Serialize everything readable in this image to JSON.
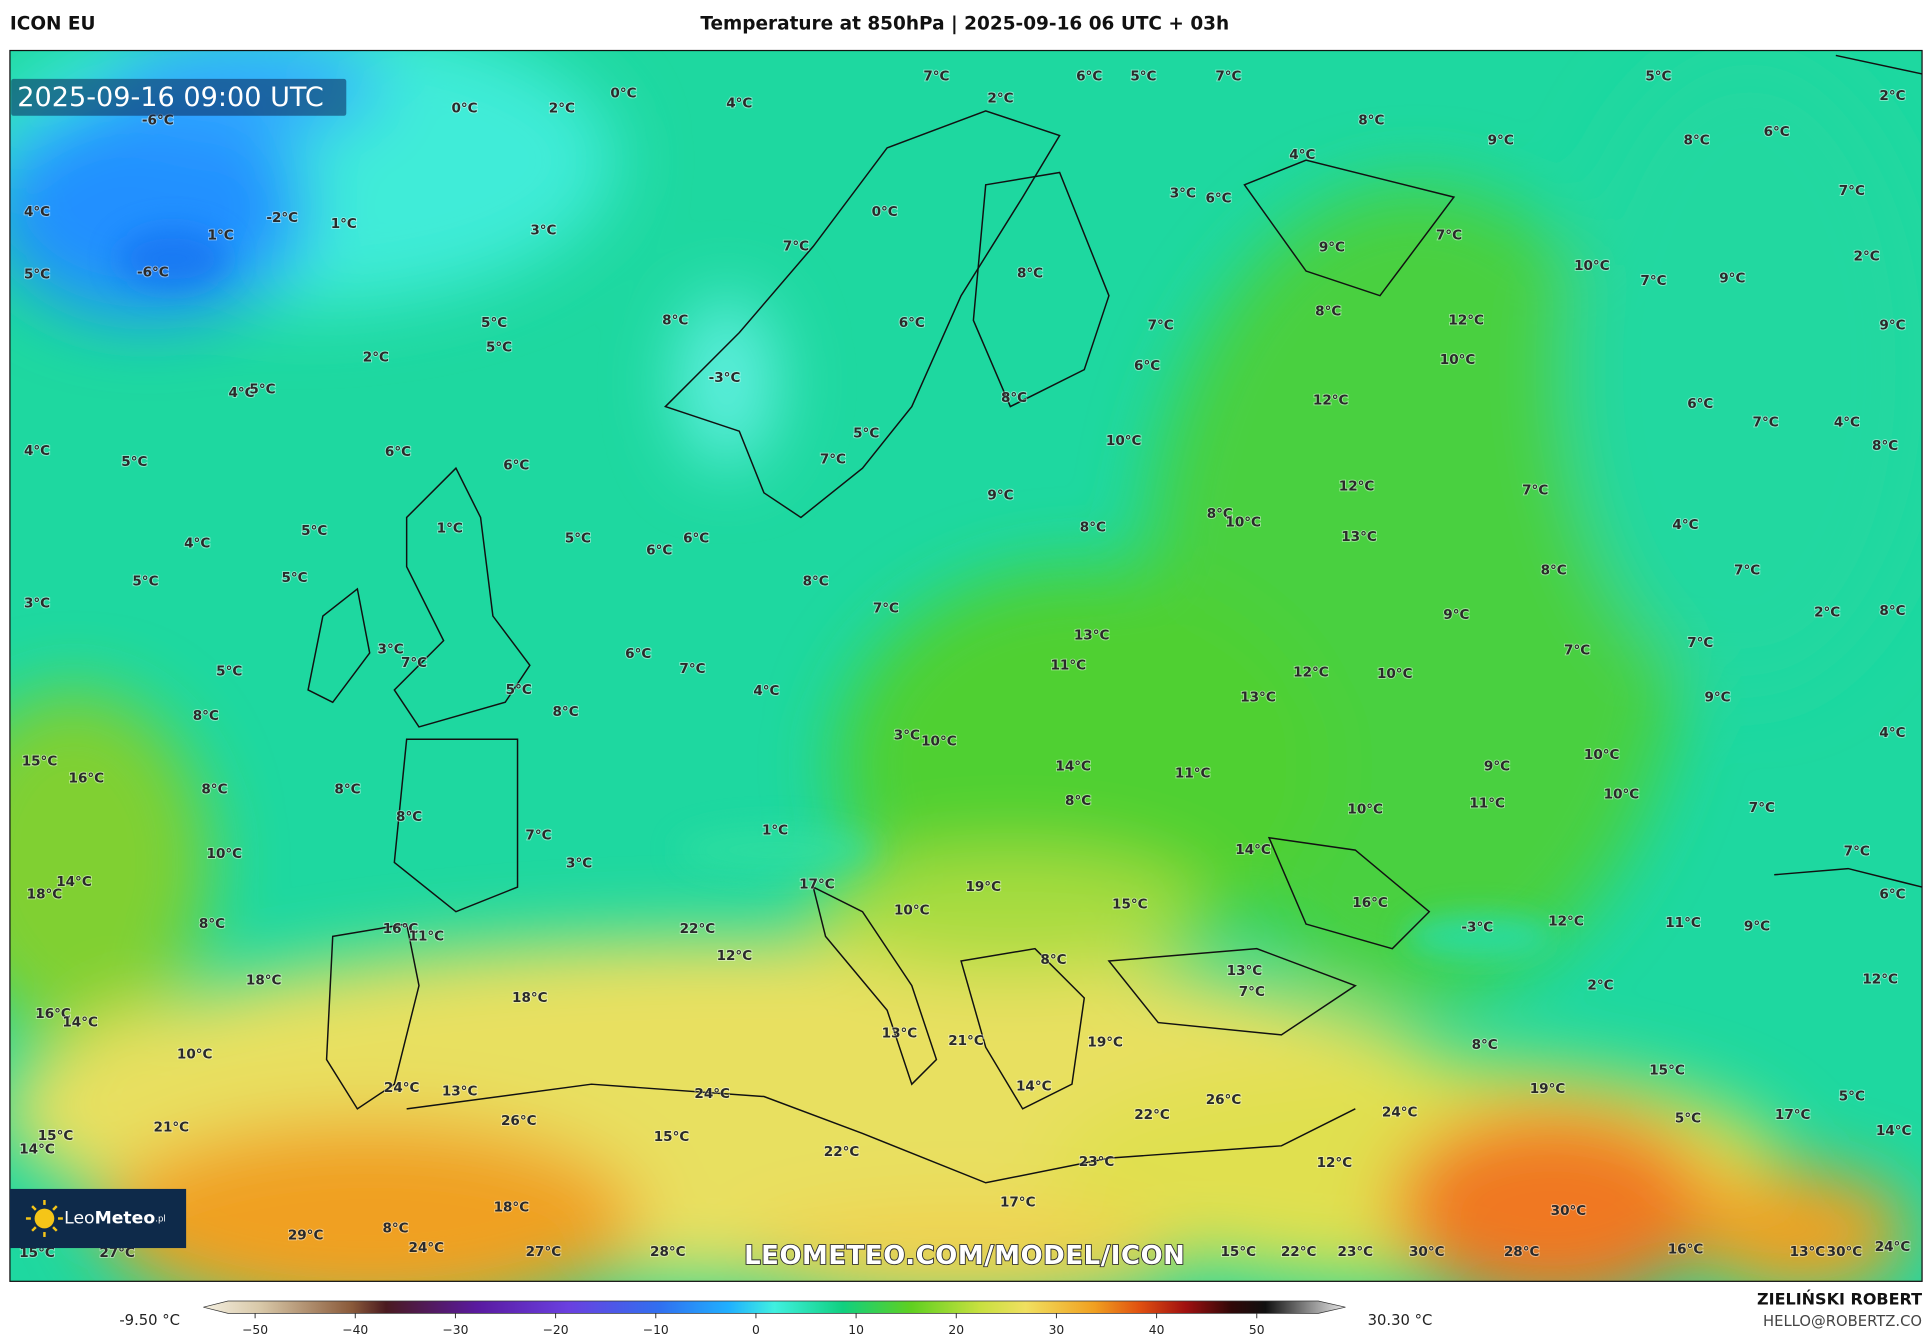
{
  "header": {
    "model": "ICON EU",
    "title": "Temperature at 850hPa | 2025-09-16 06 UTC + 03h"
  },
  "map": {
    "timestamp": "2025-09-16 09:00 UTC",
    "watermark": "LEOMETEO.COM/MODEL/ICON",
    "logo": {
      "name_light": "Leo",
      "name_bold": "Meteo",
      "suffix": ".pl"
    },
    "labels": [
      "0°C",
      "2°C",
      "0°C",
      "4°C",
      "7°C",
      "2°C",
      "6°C",
      "5°C",
      "7°C",
      "5°C",
      "2°C",
      "-6°C",
      "8°C",
      "9°C",
      "8°C",
      "6°C",
      "4°C",
      "4°C",
      "-2°C",
      "1°C",
      "1°C",
      "3°C",
      "0°C",
      "3°C",
      "6°C",
      "7°C",
      "5°C",
      "-6°C",
      "7°C",
      "7°C",
      "9°C",
      "10°C",
      "7°C",
      "9°C",
      "2°C",
      "8°C",
      "5°C",
      "8°C",
      "6°C",
      "7°C",
      "8°C",
      "12°C",
      "9°C",
      "5°C",
      "2°C",
      "10°C",
      "6°C",
      "4°C",
      "5°C",
      "-3°C",
      "8°C",
      "12°C",
      "6°C",
      "7°C",
      "4°C",
      "5°C",
      "10°C",
      "4°C",
      "5°C",
      "6°C",
      "6°C",
      "7°C",
      "8°C",
      "9°C",
      "12°C",
      "7°C",
      "1°C",
      "4°C",
      "5°C",
      "5°C",
      "6°C",
      "6°C",
      "8°C",
      "10°C",
      "8°C",
      "13°C",
      "4°C",
      "5°C",
      "5°C",
      "8°C",
      "8°C",
      "7°C",
      "3°C",
      "7°C",
      "9°C",
      "2°C",
      "8°C",
      "13°C",
      "3°C",
      "7°C",
      "6°C",
      "7°C",
      "11°C",
      "12°C",
      "10°C",
      "7°C",
      "7°C",
      "5°C",
      "5°C",
      "4°C",
      "13°C",
      "9°C",
      "8°C",
      "8°C",
      "4°C",
      "3°C",
      "10°C",
      "15°C",
      "16°C",
      "8°C",
      "8°C",
      "14°C",
      "11°C",
      "9°C",
      "10°C",
      "10°C",
      "8°C",
      "8°C",
      "10°C",
      "11°C",
      "7°C",
      "10°C",
      "7°C",
      "1°C",
      "14°C",
      "7°C",
      "3°C",
      "14°C",
      "18°C",
      "17°C",
      "19°C",
      "6°C",
      "10°C",
      "15°C",
      "16°C",
      "8°C",
      "16°C",
      "11°C",
      "22°C",
      "-3°C",
      "12°C",
      "11°C",
      "9°C",
      "12°C",
      "8°C",
      "18°C",
      "13°C",
      "7°C",
      "2°C",
      "12°C",
      "16°C",
      "14°C",
      "18°C",
      "13°C",
      "21°C",
      "19°C",
      "8°C",
      "10°C",
      "15°C",
      "24°C",
      "13°C",
      "24°C",
      "14°C",
      "26°C",
      "19°C",
      "5°C",
      "26°C",
      "24°C",
      "5°C",
      "17°C",
      "21°C",
      "15°C",
      "22°C",
      "14°C",
      "15°C",
      "14°C",
      "22°C",
      "23°C",
      "12°C",
      "17°C",
      "18°C",
      "30°C",
      "29°C",
      "8°C",
      "24°C",
      "27°C",
      "28°C",
      "15°C",
      "27°C",
      "15°C",
      "22°C",
      "23°C",
      "30°C",
      "28°C",
      "16°C",
      "13°C",
      "30°C",
      "24°C"
    ]
  },
  "colorbar": {
    "min_label": "-9.50 °C",
    "max_label": "30.30 °C",
    "ticks": [
      "−50",
      "−40",
      "−30",
      "−20",
      "−10",
      "0",
      "10",
      "20",
      "30",
      "40",
      "50"
    ]
  },
  "credit": {
    "author": "ZIELIŃSKI ROBERT",
    "email": "HELLO@ROBERTZ.CO"
  }
}
